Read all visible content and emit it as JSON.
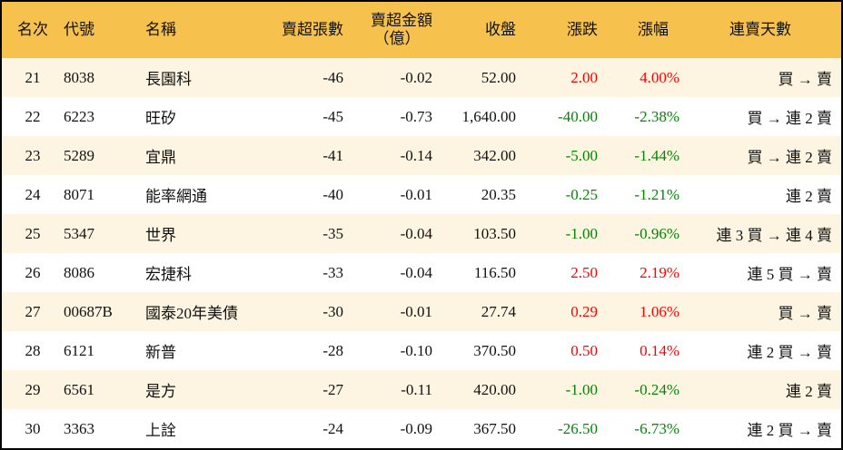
{
  "headers": {
    "rank": "名次",
    "code": "代號",
    "name": "名稱",
    "net_sell_lots": "賣超張數",
    "net_sell_amount": "賣超金額",
    "net_sell_amount_unit": "（億）",
    "close": "收盤",
    "change": "漲跌",
    "change_pct": "漲幅",
    "streak": "連賣天數"
  },
  "colors": {
    "header_bg": "#f7c14d",
    "stripe_bg": "#fdf5e2",
    "up": "#ff0000",
    "down": "#008800"
  },
  "rows": [
    {
      "rank": "21",
      "code": "8038",
      "name": "長園科",
      "lots": "-46",
      "amount": "-0.02",
      "close": "52.00",
      "change": "2.00",
      "pct": "4.00%",
      "dir": "up",
      "streak": "買 → 賣"
    },
    {
      "rank": "22",
      "code": "6223",
      "name": "旺矽",
      "lots": "-45",
      "amount": "-0.73",
      "close": "1,640.00",
      "change": "-40.00",
      "pct": "-2.38%",
      "dir": "down",
      "streak": "買 → 連 2 賣"
    },
    {
      "rank": "23",
      "code": "5289",
      "name": "宜鼎",
      "lots": "-41",
      "amount": "-0.14",
      "close": "342.00",
      "change": "-5.00",
      "pct": "-1.44%",
      "dir": "down",
      "streak": "買 → 連 2 賣"
    },
    {
      "rank": "24",
      "code": "8071",
      "name": "能率網通",
      "lots": "-40",
      "amount": "-0.01",
      "close": "20.35",
      "change": "-0.25",
      "pct": "-1.21%",
      "dir": "down",
      "streak": "連 2 賣"
    },
    {
      "rank": "25",
      "code": "5347",
      "name": "世界",
      "lots": "-35",
      "amount": "-0.04",
      "close": "103.50",
      "change": "-1.00",
      "pct": "-0.96%",
      "dir": "down",
      "streak": "連 3 買 → 連 4 賣"
    },
    {
      "rank": "26",
      "code": "8086",
      "name": "宏捷科",
      "lots": "-33",
      "amount": "-0.04",
      "close": "116.50",
      "change": "2.50",
      "pct": "2.19%",
      "dir": "up",
      "streak": "連 5 買 → 賣"
    },
    {
      "rank": "27",
      "code": "00687B",
      "name": "國泰20年美債",
      "lots": "-30",
      "amount": "-0.01",
      "close": "27.74",
      "change": "0.29",
      "pct": "1.06%",
      "dir": "up",
      "streak": "買 → 賣"
    },
    {
      "rank": "28",
      "code": "6121",
      "name": "新普",
      "lots": "-28",
      "amount": "-0.10",
      "close": "370.50",
      "change": "0.50",
      "pct": "0.14%",
      "dir": "up",
      "streak": "連 2 買 → 賣"
    },
    {
      "rank": "29",
      "code": "6561",
      "name": "是方",
      "lots": "-27",
      "amount": "-0.11",
      "close": "420.00",
      "change": "-1.00",
      "pct": "-0.24%",
      "dir": "down",
      "streak": "連 2 賣"
    },
    {
      "rank": "30",
      "code": "3363",
      "name": "上詮",
      "lots": "-24",
      "amount": "-0.09",
      "close": "367.50",
      "change": "-26.50",
      "pct": "-6.73%",
      "dir": "down",
      "streak": "連 2 買 → 賣"
    }
  ]
}
